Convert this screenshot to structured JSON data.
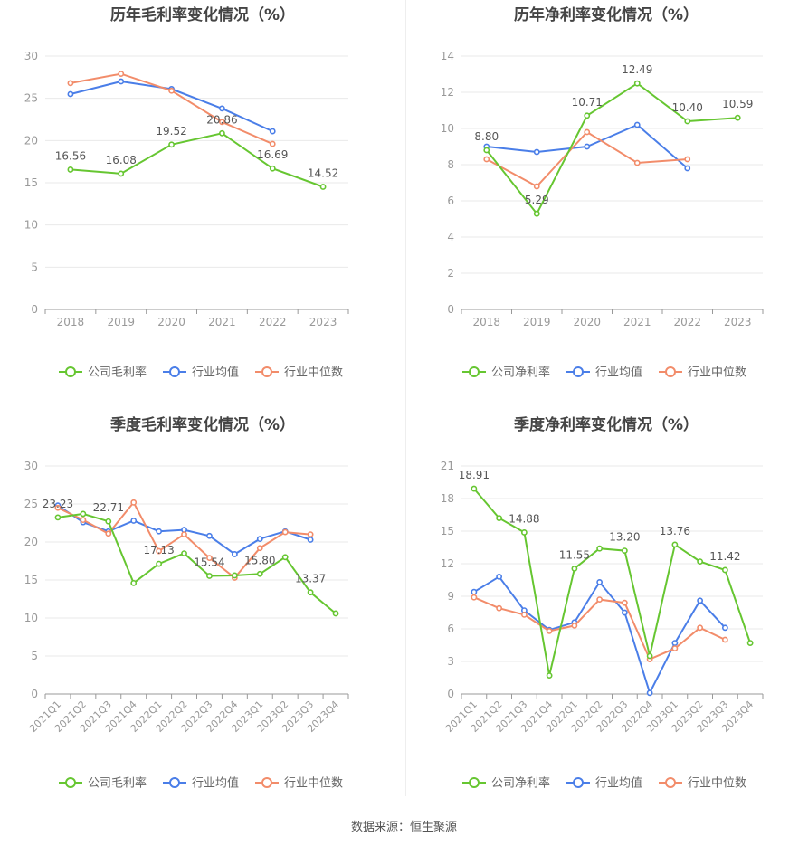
{
  "colors": {
    "company": "#66c631",
    "industry_avg": "#4a7ee8",
    "industry_median": "#f28c6a",
    "axis": "#999999",
    "grid": "#e9e9e9",
    "text": "#444444",
    "label": "#555555"
  },
  "source_text": "数据来源：恒生聚源",
  "chart_data": [
    {
      "id": "annual-gross",
      "type": "line",
      "title": "历年毛利率变化情况（%）",
      "categories": [
        "2018",
        "2019",
        "2020",
        "2021",
        "2022",
        "2023"
      ],
      "ylim": [
        0,
        30
      ],
      "yticks": [
        0,
        5,
        10,
        15,
        20,
        25,
        30
      ],
      "series": [
        {
          "name": "公司毛利率",
          "key": "company",
          "values": [
            16.56,
            16.08,
            19.52,
            20.86,
            16.69,
            14.52
          ],
          "labels": [
            "16.56",
            "16.08",
            "19.52",
            "20.86",
            "16.69",
            "14.52"
          ]
        },
        {
          "name": "行业均值",
          "key": "industry_avg",
          "values": [
            25.5,
            27.0,
            26.1,
            23.8,
            21.1,
            null
          ]
        },
        {
          "name": "行业中位数",
          "key": "industry_median",
          "values": [
            26.8,
            27.9,
            25.9,
            22.2,
            19.6,
            null
          ]
        }
      ]
    },
    {
      "id": "annual-net",
      "type": "line",
      "title": "历年净利率变化情况（%）",
      "categories": [
        "2018",
        "2019",
        "2020",
        "2021",
        "2022",
        "2023"
      ],
      "ylim": [
        0,
        14
      ],
      "yticks": [
        0,
        2,
        4,
        6,
        8,
        10,
        12,
        14
      ],
      "series": [
        {
          "name": "公司净利率",
          "key": "company",
          "values": [
            8.8,
            5.29,
            10.71,
            12.49,
            10.4,
            10.59
          ],
          "labels": [
            "8.80",
            "5.29",
            "10.71",
            "12.49",
            "10.40",
            "10.59"
          ]
        },
        {
          "name": "行业均值",
          "key": "industry_avg",
          "values": [
            9.0,
            8.7,
            9.0,
            10.2,
            7.8,
            null
          ]
        },
        {
          "name": "行业中位数",
          "key": "industry_median",
          "values": [
            8.3,
            6.8,
            9.8,
            8.1,
            8.3,
            null
          ]
        }
      ]
    },
    {
      "id": "quarterly-gross",
      "type": "line",
      "title": "季度毛利率变化情况（%）",
      "categories": [
        "2021Q1",
        "2021Q2",
        "2021Q3",
        "2021Q4",
        "2022Q1",
        "2022Q2",
        "2022Q3",
        "2022Q4",
        "2023Q1",
        "2023Q2",
        "2023Q3",
        "2023Q4"
      ],
      "ylim": [
        0,
        30
      ],
      "yticks": [
        0,
        5,
        10,
        15,
        20,
        25,
        30
      ],
      "series": [
        {
          "name": "公司毛利率",
          "key": "company",
          "values": [
            23.23,
            23.7,
            22.71,
            14.6,
            17.13,
            18.5,
            15.54,
            15.6,
            15.8,
            18.0,
            13.37,
            10.6
          ],
          "labels": [
            "23.23",
            null,
            "22.71",
            null,
            "17.13",
            null,
            "15.54",
            null,
            "15.80",
            null,
            "13.37",
            null
          ]
        },
        {
          "name": "行业均值",
          "key": "industry_avg",
          "values": [
            24.8,
            22.6,
            21.4,
            22.8,
            21.4,
            21.6,
            20.8,
            18.4,
            20.4,
            21.4,
            20.3,
            null
          ]
        },
        {
          "name": "行业中位数",
          "key": "industry_median",
          "values": [
            24.5,
            22.9,
            21.1,
            25.2,
            18.8,
            21.0,
            17.9,
            15.3,
            19.2,
            21.3,
            21.0,
            null
          ]
        }
      ]
    },
    {
      "id": "quarterly-net",
      "type": "line",
      "title": "季度净利率变化情况（%）",
      "categories": [
        "2021Q1",
        "2021Q2",
        "2021Q3",
        "2021Q4",
        "2022Q1",
        "2022Q2",
        "2022Q3",
        "2022Q4",
        "2023Q1",
        "2023Q2",
        "2023Q3",
        "2023Q4"
      ],
      "ylim": [
        0,
        21
      ],
      "yticks": [
        0,
        3,
        6,
        9,
        12,
        15,
        18,
        21
      ],
      "series": [
        {
          "name": "公司净利率",
          "key": "company",
          "values": [
            18.91,
            16.2,
            14.88,
            1.7,
            11.55,
            13.4,
            13.2,
            3.5,
            13.76,
            12.2,
            11.42,
            4.7
          ],
          "labels": [
            "18.91",
            null,
            "14.88",
            null,
            "11.55",
            null,
            "13.20",
            null,
            "13.76",
            null,
            "11.42",
            null
          ]
        },
        {
          "name": "行业均值",
          "key": "industry_avg",
          "values": [
            9.4,
            10.8,
            7.7,
            5.9,
            6.6,
            10.3,
            7.5,
            0.1,
            4.7,
            8.6,
            6.1,
            null
          ]
        },
        {
          "name": "行业中位数",
          "key": "industry_median",
          "values": [
            8.9,
            7.9,
            7.3,
            5.8,
            6.3,
            8.7,
            8.4,
            3.2,
            4.2,
            6.1,
            5.0,
            null
          ]
        }
      ]
    }
  ]
}
